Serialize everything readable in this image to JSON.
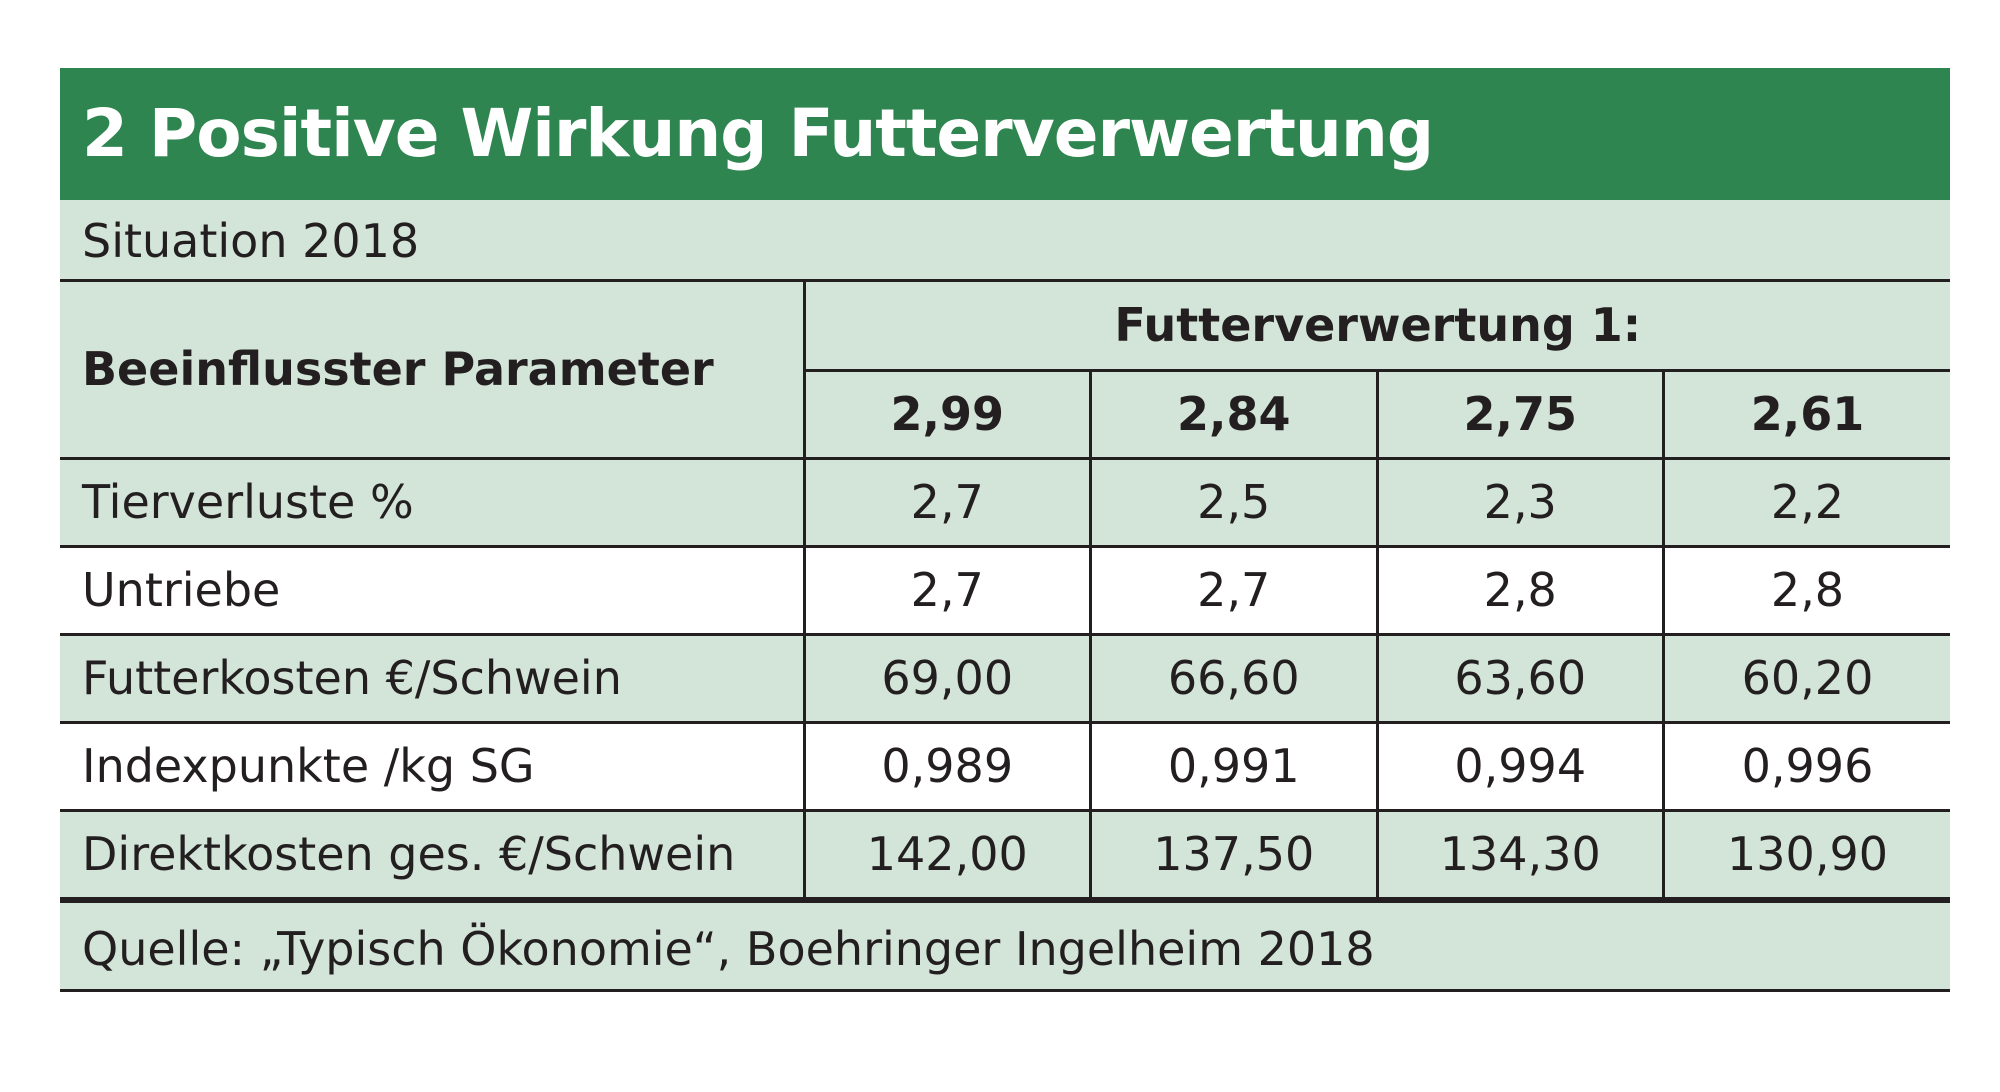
{
  "title": "2 Positive Wirkung Futterverwertung",
  "subtitle": "Situation 2018",
  "table": {
    "param_header": "Beeinflusster Parameter",
    "group_header": "Futterverwertung 1:",
    "columns": [
      "2,99",
      "2,84",
      "2,75",
      "2,61"
    ],
    "rows": [
      {
        "label": "Tierverluste %",
        "values": [
          "2,7",
          "2,5",
          "2,3",
          "2,2"
        ]
      },
      {
        "label": "Untriebe",
        "values": [
          "2,7",
          "2,7",
          "2,8",
          "2,8"
        ]
      },
      {
        "label": "Futterkosten €/Schwein",
        "values": [
          "69,00",
          "66,60",
          "63,60",
          "60,20"
        ]
      },
      {
        "label": "Indexpunkte /kg SG",
        "values": [
          "0,989",
          "0,991",
          "0,994",
          "0,996"
        ]
      },
      {
        "label": "Direktkosten ges. €/Schwein",
        "values": [
          "142,00",
          "137,50",
          "134,30",
          "130,90"
        ]
      }
    ]
  },
  "source": "Quelle: „Typisch Ökonomie“, Boehringer Ingelheim 2018",
  "colors": {
    "title_bg": "#2e8550",
    "shade_bg": "#d3e4d8",
    "border": "#231f20"
  }
}
